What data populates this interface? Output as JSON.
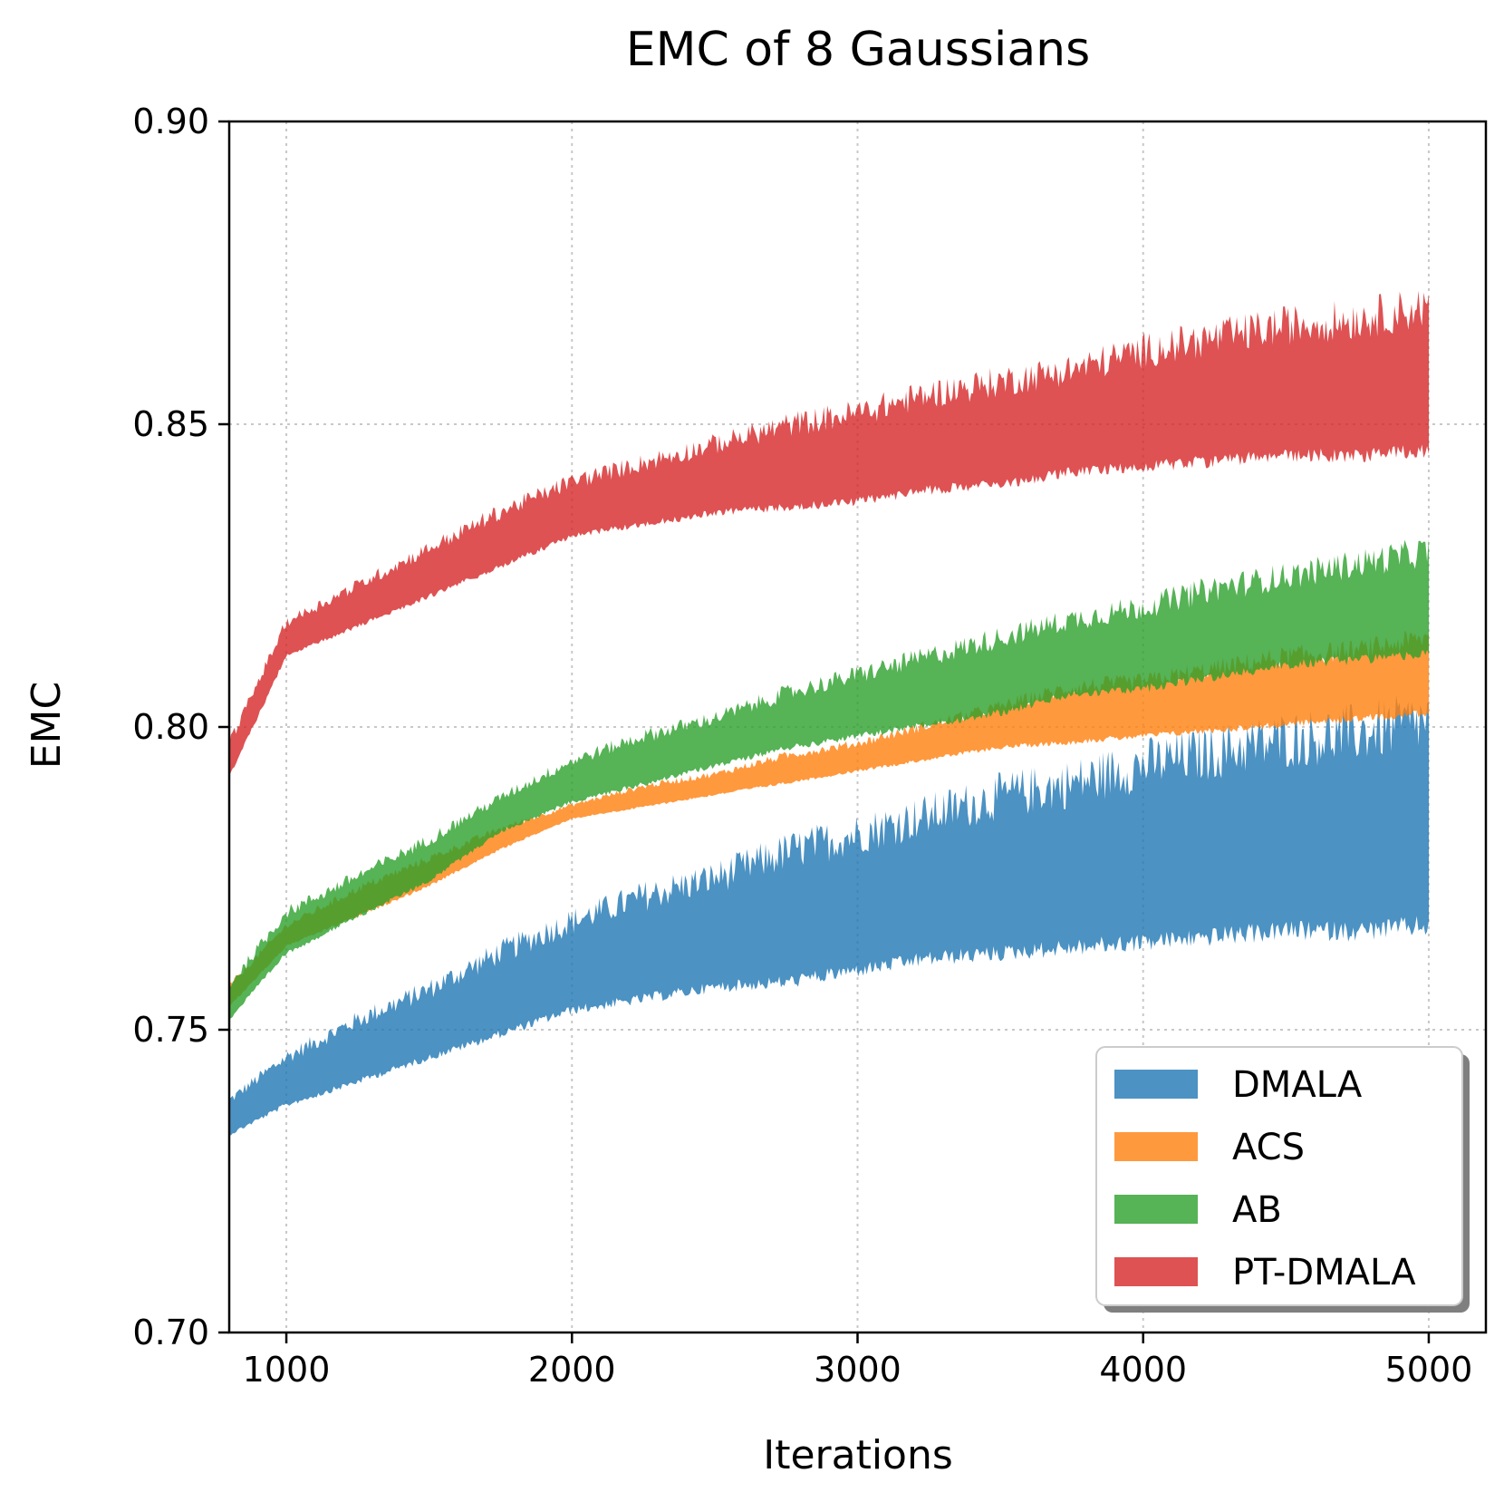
{
  "chart_data": {
    "type": "area",
    "title": "EMC of 8 Gaussians",
    "xlabel": "Iterations",
    "ylabel": "EMC",
    "xlim": [
      800,
      5200
    ],
    "ylim": [
      0.7,
      0.9
    ],
    "xticks": [
      1000,
      2000,
      3000,
      4000,
      5000
    ],
    "yticks": [
      0.7,
      0.75,
      0.8,
      0.85,
      0.9
    ],
    "ytick_labels": [
      "0.70",
      "0.75",
      "0.80",
      "0.85",
      "0.90"
    ],
    "grid": true,
    "legend_position": "lower-right",
    "x": [
      800,
      1000,
      1250,
      1500,
      1750,
      2000,
      2250,
      2500,
      2750,
      3000,
      3250,
      3500,
      3750,
      4000,
      4250,
      4500,
      4750,
      5000
    ],
    "series": [
      {
        "name": "DMALA",
        "color": "#1f77b4",
        "lower": [
          0.733,
          0.738,
          0.742,
          0.746,
          0.75,
          0.754,
          0.756,
          0.758,
          0.759,
          0.761,
          0.763,
          0.764,
          0.765,
          0.766,
          0.767,
          0.768,
          0.768,
          0.769
        ],
        "upper": [
          0.738,
          0.745,
          0.751,
          0.756,
          0.762,
          0.767,
          0.771,
          0.774,
          0.778,
          0.781,
          0.784,
          0.787,
          0.789,
          0.792,
          0.794,
          0.796,
          0.797,
          0.799
        ]
      },
      {
        "name": "ACS",
        "color": "#ff7f0e",
        "lower": [
          0.754,
          0.764,
          0.769,
          0.774,
          0.78,
          0.785,
          0.787,
          0.789,
          0.791,
          0.793,
          0.795,
          0.797,
          0.798,
          0.799,
          0.8,
          0.801,
          0.802,
          0.803
        ],
        "upper": [
          0.757,
          0.767,
          0.773,
          0.778,
          0.783,
          0.787,
          0.79,
          0.792,
          0.795,
          0.797,
          0.8,
          0.803,
          0.806,
          0.807,
          0.809,
          0.811,
          0.812,
          0.814
        ]
      },
      {
        "name": "AB",
        "color": "#2ca02c",
        "lower": [
          0.752,
          0.763,
          0.769,
          0.775,
          0.783,
          0.788,
          0.791,
          0.794,
          0.797,
          0.799,
          0.801,
          0.803,
          0.806,
          0.807,
          0.809,
          0.811,
          0.812,
          0.813
        ],
        "upper": [
          0.757,
          0.769,
          0.775,
          0.781,
          0.788,
          0.794,
          0.798,
          0.801,
          0.805,
          0.808,
          0.811,
          0.814,
          0.817,
          0.819,
          0.822,
          0.824,
          0.826,
          0.828
        ]
      },
      {
        "name": "PT-DMALA",
        "color": "#d62728",
        "lower": [
          0.792,
          0.812,
          0.817,
          0.822,
          0.827,
          0.832,
          0.834,
          0.836,
          0.837,
          0.838,
          0.84,
          0.841,
          0.843,
          0.844,
          0.845,
          0.846,
          0.846,
          0.847
        ],
        "upper": [
          0.797,
          0.817,
          0.823,
          0.829,
          0.835,
          0.84,
          0.843,
          0.846,
          0.849,
          0.851,
          0.854,
          0.856,
          0.858,
          0.861,
          0.863,
          0.865,
          0.866,
          0.868
        ]
      }
    ]
  }
}
